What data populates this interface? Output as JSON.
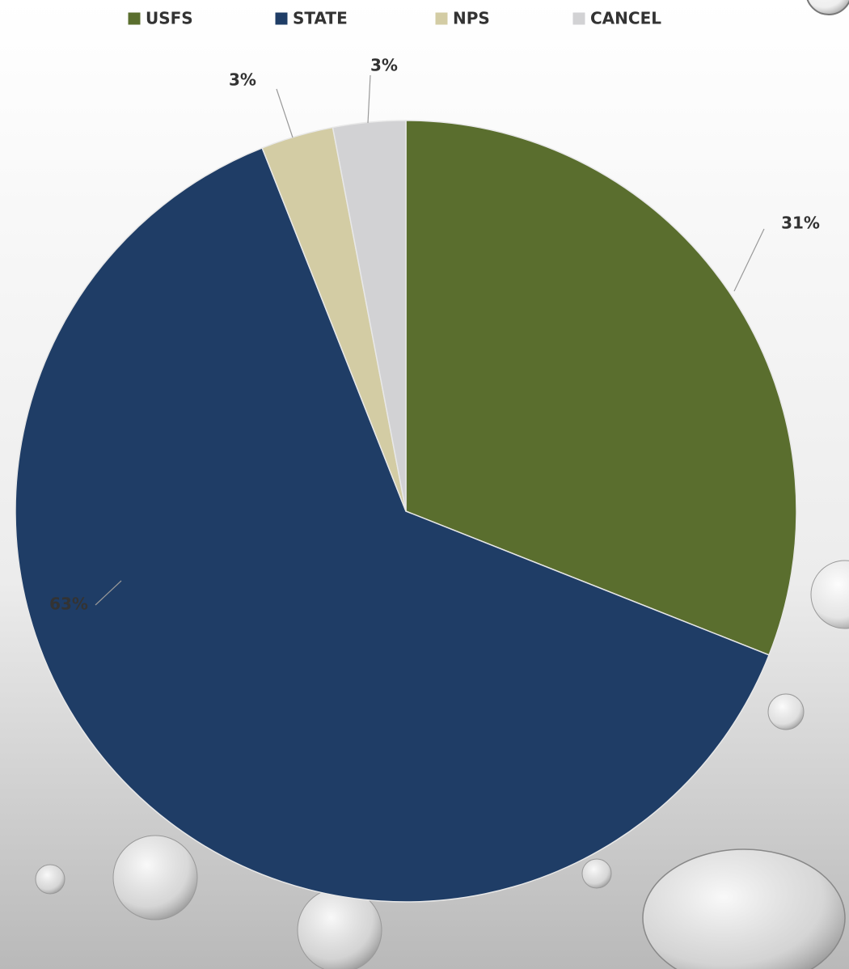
{
  "chart_data": {
    "type": "pie",
    "categories": [
      "USFS",
      "STATE",
      "NPS",
      "CANCEL"
    ],
    "values": [
      31,
      63,
      3,
      3
    ],
    "value_labels": [
      "31%",
      "63%",
      "3%",
      "3%"
    ],
    "colors": [
      "#5a6e2e",
      "#1f3d66",
      "#d3cca4",
      "#d2d2d4"
    ],
    "legend": "top"
  }
}
